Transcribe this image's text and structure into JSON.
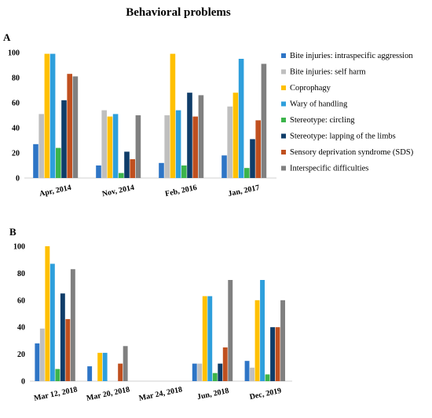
{
  "figure_title": "Behavioral problems",
  "colors": [
    "#2e75c6",
    "#bfbfbf",
    "#ffc000",
    "#2e9fdc",
    "#3cb44b",
    "#0f3d69",
    "#c0501f",
    "#808080"
  ],
  "chart_data": [
    {
      "type": "bar",
      "panel_label": "A",
      "title": "",
      "xlabel": "",
      "ylabel": "",
      "ylim": [
        0,
        100
      ],
      "yticks": [
        0,
        20,
        40,
        60,
        80,
        100
      ],
      "grid": false,
      "legend": "right",
      "categories": [
        "Apr, 2014",
        "Nov, 2014",
        "Feb, 2016",
        "Jan, 2017"
      ],
      "series": [
        {
          "name": "Bite injuries: intraspecific aggression",
          "values": [
            27,
            10,
            12,
            18
          ]
        },
        {
          "name": "Bite injuries: self harm",
          "values": [
            51,
            54,
            50,
            57
          ]
        },
        {
          "name": "Coprophagy",
          "values": [
            99,
            49,
            99,
            68
          ]
        },
        {
          "name": "Wary of handling",
          "values": [
            99,
            51,
            54,
            95
          ]
        },
        {
          "name": "Stereotype: circling",
          "values": [
            24,
            4,
            10,
            8
          ]
        },
        {
          "name": "Stereotype: lapping of the limbs",
          "values": [
            62,
            21,
            68,
            31
          ]
        },
        {
          "name": "Sensory deprivation syndrome (SDS)",
          "values": [
            83,
            15,
            49,
            46
          ]
        },
        {
          "name": "Interspecific difficulties",
          "values": [
            81,
            50,
            66,
            91
          ]
        }
      ]
    },
    {
      "type": "bar",
      "panel_label": "B",
      "title": "",
      "xlabel": "",
      "ylabel": "",
      "ylim": [
        0,
        100
      ],
      "yticks": [
        0,
        20,
        40,
        60,
        80,
        100
      ],
      "grid": false,
      "legend": "none",
      "categories": [
        "Mar 12, 2018",
        "Mar 20, 2018",
        "Mar 24, 2018",
        "Jun, 2018",
        "Dec, 2019"
      ],
      "series": [
        {
          "name": "Bite injuries: intraspecific aggression",
          "values": [
            28,
            11,
            0,
            13,
            15
          ]
        },
        {
          "name": "Bite injuries: self harm",
          "values": [
            39,
            0,
            0,
            13,
            10
          ]
        },
        {
          "name": "Coprophagy",
          "values": [
            100,
            21,
            0,
            63,
            60
          ]
        },
        {
          "name": "Wary of handling",
          "values": [
            87,
            21,
            0,
            63,
            75
          ]
        },
        {
          "name": "Stereotype: circling",
          "values": [
            9,
            0,
            0,
            6,
            5
          ]
        },
        {
          "name": "Stereotype: lapping of the limbs",
          "values": [
            65,
            0,
            0,
            13,
            40
          ]
        },
        {
          "name": "Sensory deprivation syndrome (SDS)",
          "values": [
            46,
            13,
            0,
            25,
            40
          ]
        },
        {
          "name": "Interspecific difficulties",
          "values": [
            83,
            26,
            0,
            75,
            60
          ]
        }
      ]
    }
  ]
}
